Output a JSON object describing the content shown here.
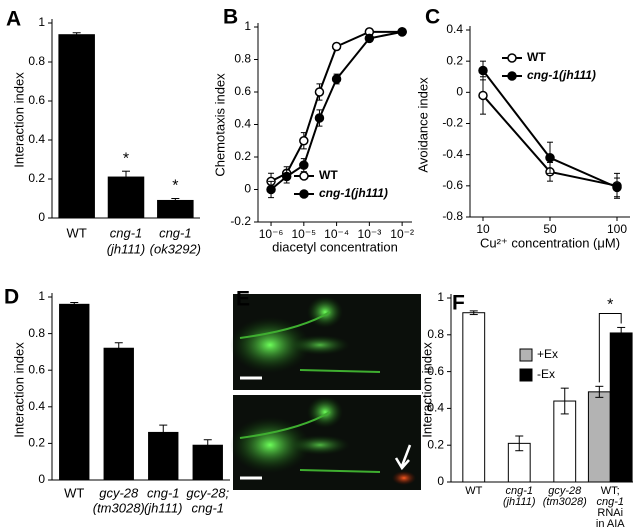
{
  "chart_data": [
    {
      "type": "bar",
      "label": "A",
      "ylabel": "Interaction index",
      "categories": [
        [
          "WT"
        ],
        [
          "cng-1",
          "(jh111)"
        ],
        [
          "cng-1",
          "(ok3292)"
        ]
      ],
      "category_italic": [
        [
          false
        ],
        [
          true,
          true
        ],
        [
          true,
          true
        ]
      ],
      "values": [
        0.94,
        0.21,
        0.09
      ],
      "errors": [
        0.01,
        0.03,
        0.01
      ],
      "significance": [
        null,
        "*",
        "*"
      ],
      "color": "#000000",
      "ylim": [
        0,
        1
      ],
      "yticks": [
        0,
        0.2,
        0.4,
        0.6,
        0.8,
        1
      ]
    },
    {
      "type": "line",
      "label": "B",
      "ylabel": "Chemotaxis index",
      "xlabel": "diacetyl concentration",
      "xscale": "log",
      "x": [
        1e-06,
        3e-06,
        1e-05,
        3e-05,
        0.0001,
        0.001,
        0.01
      ],
      "xlim": [
        4e-07,
        0.02
      ],
      "xticks": [
        {
          "value": 1e-06,
          "label": "10⁻⁶"
        },
        {
          "value": 1e-05,
          "label": "10⁻⁵"
        },
        {
          "value": 0.0001,
          "label": "10⁻⁴"
        },
        {
          "value": 0.001,
          "label": "10⁻³"
        },
        {
          "value": 0.01,
          "label": "10⁻²"
        }
      ],
      "series": [
        {
          "name": "WT",
          "marker": "open",
          "italic": false,
          "color": "#000000",
          "values": [
            0.05,
            0.1,
            0.3,
            0.6,
            0.88,
            0.97,
            0.97
          ],
          "errors": [
            0.05,
            0.04,
            0.05,
            0.05,
            0.02,
            0.01,
            0.01
          ]
        },
        {
          "name": "cng-1(jh111)",
          "marker": "filled",
          "italic": true,
          "color": "#000000",
          "values": [
            0,
            0.08,
            0.15,
            0.44,
            0.68,
            0.93,
            0.97
          ],
          "errors": [
            0.05,
            0.04,
            0.04,
            0.05,
            0.03,
            0.02,
            0.01
          ]
        }
      ],
      "ylim": [
        -0.2,
        1
      ],
      "yticks": [
        -0.2,
        0,
        0.2,
        0.4,
        0.6,
        0.8,
        1
      ]
    },
    {
      "type": "line",
      "label": "C",
      "ylabel": "Avoidance index",
      "xlabel": "Cu²⁺ concentration (μM)",
      "categories": [
        "10",
        "50",
        "100"
      ],
      "series": [
        {
          "name": "WT",
          "marker": "open",
          "italic": false,
          "color": "#000000",
          "values": [
            -0.02,
            -0.51,
            -0.6
          ],
          "errors": [
            0.12,
            0.06,
            0.08
          ]
        },
        {
          "name": "cng-1(jh111)",
          "marker": "filled",
          "italic": true,
          "color": "#000000",
          "values": [
            0.14,
            -0.42,
            -0.61
          ],
          "errors": [
            0.06,
            0.1,
            0.06
          ]
        }
      ],
      "ylim": [
        -0.8,
        0.4
      ],
      "yticks": [
        -0.8,
        -0.6,
        -0.4,
        -0.2,
        0,
        0.2,
        0.4
      ]
    },
    {
      "type": "bar",
      "label": "D",
      "ylabel": "Interaction index",
      "categories": [
        [
          "WT"
        ],
        [
          "gcy-28",
          "(tm3028)"
        ],
        [
          "cng-1",
          "(jh111)"
        ],
        [
          "gcy-28;",
          "cng-1"
        ]
      ],
      "category_italic": [
        [
          false
        ],
        [
          true,
          true
        ],
        [
          true,
          true
        ],
        [
          true,
          true
        ]
      ],
      "values": [
        0.96,
        0.72,
        0.26,
        0.19
      ],
      "errors": [
        0.01,
        0.03,
        0.04,
        0.03
      ],
      "color": "#000000",
      "ylim": [
        0,
        1
      ],
      "yticks": [
        0,
        0.2,
        0.4,
        0.6,
        0.8,
        1
      ]
    },
    {
      "type": "image",
      "label": "E"
    },
    {
      "type": "bar",
      "label": "F",
      "ylabel": "Interaction index",
      "categories": [
        [
          "WT"
        ],
        [
          "cng-1",
          "(jh111)"
        ],
        [
          "gcy-28",
          "(tm3028)"
        ],
        [
          "WT;",
          "cng-1",
          "RNAi",
          "in AIA"
        ]
      ],
      "category_italic": [
        [
          false
        ],
        [
          true,
          true
        ],
        [
          true,
          true
        ],
        [
          false,
          true,
          false,
          false
        ]
      ],
      "values": [
        0.92,
        0.21,
        0.44,
        null
      ],
      "errors": [
        0.01,
        0.04,
        0.07,
        null
      ],
      "color": "#ffffff",
      "series": [
        {
          "name": "+Ex",
          "color": "#b3b3b3",
          "values": [
            null,
            null,
            null,
            0.49
          ],
          "errors": [
            null,
            null,
            null,
            0.03
          ]
        },
        {
          "name": "-Ex",
          "color": "#000000",
          "values": [
            null,
            null,
            null,
            0.81
          ],
          "errors": [
            null,
            null,
            null,
            0.03
          ]
        }
      ],
      "bracket_label": "*",
      "ylim": [
        0,
        1
      ],
      "yticks": [
        0,
        0.2,
        0.4,
        0.6,
        0.8,
        1
      ]
    }
  ]
}
